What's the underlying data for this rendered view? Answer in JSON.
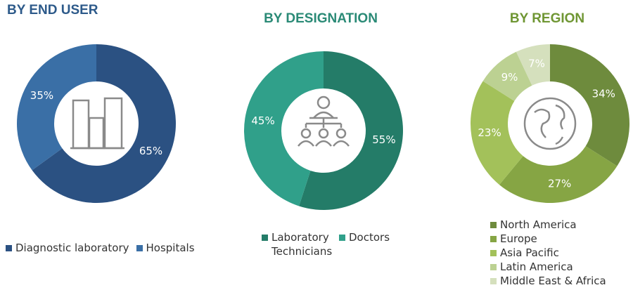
{
  "chart_data": [
    {
      "type": "pie",
      "title": "BY END USER",
      "title_color": "#2d5a8a",
      "categories": [
        "Diagnostic laboratory",
        "Hospitals"
      ],
      "values": [
        65,
        35
      ],
      "value_labels": [
        "65%",
        "35%"
      ],
      "colors": [
        "#2b5182",
        "#3a6fa6"
      ]
    },
    {
      "type": "pie",
      "title": "BY DESIGNATION",
      "title_color": "#2a8a76",
      "categories": [
        "Laboratory Technicians",
        "Doctors"
      ],
      "values": [
        55,
        45
      ],
      "value_labels": [
        "55%",
        "45%"
      ],
      "colors": [
        "#247c68",
        "#30a08a"
      ]
    },
    {
      "type": "pie",
      "title": "BY REGION",
      "title_color": "#6f9633",
      "categories": [
        "North America",
        "Europe",
        "Asia Pacific",
        "Latin America",
        "Middle East & Africa"
      ],
      "values": [
        34,
        27,
        23,
        9,
        7
      ],
      "value_labels": [
        "34%",
        "27%",
        "23%",
        "9%",
        "7%"
      ],
      "colors": [
        "#6e8b3d",
        "#86a544",
        "#a3c15a",
        "#bcd192",
        "#d5e0bd"
      ]
    }
  ]
}
